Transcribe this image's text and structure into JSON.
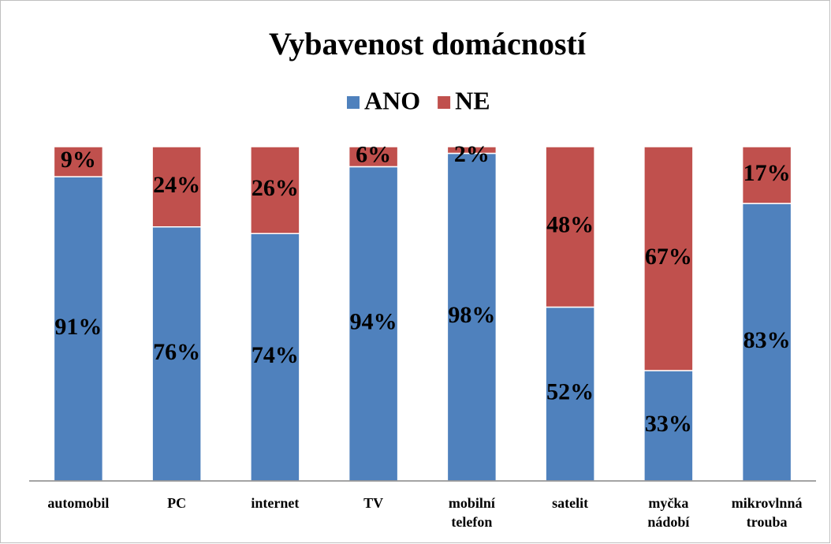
{
  "chart_data": {
    "type": "stacked_bar",
    "title": "Vybavenost domácností",
    "categories": [
      "automobil",
      "PC",
      "internet",
      "TV",
      "mobilní telefon",
      "satelit",
      "myčka nádobí",
      "mikrovlnná trouba"
    ],
    "series": [
      {
        "name": "ANO",
        "color": "#4f81bd",
        "values": [
          91,
          76,
          74,
          94,
          98,
          52,
          33,
          83
        ],
        "value_labels": [
          "91%",
          "76%",
          "74%",
          "94%",
          "98%",
          "52%",
          "33%",
          "83%"
        ]
      },
      {
        "name": "NE",
        "color": "#c0504d",
        "values": [
          9,
          24,
          26,
          6,
          2,
          48,
          67,
          17
        ],
        "value_labels": [
          "9%",
          "24%",
          "26%",
          "6%",
          "2%",
          "48%",
          "67%",
          "17%"
        ]
      }
    ],
    "ylim": [
      0,
      100
    ],
    "legend": "top"
  }
}
